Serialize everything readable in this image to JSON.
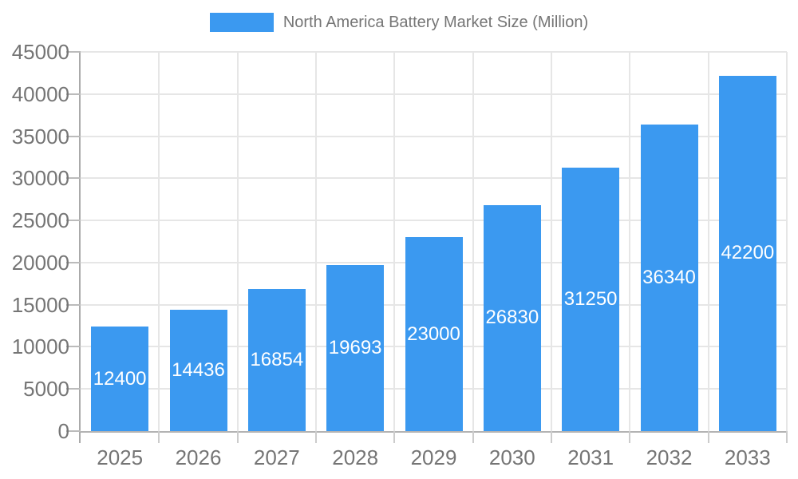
{
  "chart_data": {
    "type": "bar",
    "title": "North America Battery Market Size (Million)",
    "categories": [
      "2025",
      "2026",
      "2027",
      "2028",
      "2029",
      "2030",
      "2031",
      "2032",
      "2033"
    ],
    "values": [
      12400,
      14436,
      16854,
      19693,
      23000,
      26830,
      31250,
      36340,
      42200
    ],
    "xlabel": "",
    "ylabel": "",
    "ylim": [
      0,
      45000
    ],
    "ytick_step": 5000,
    "y_tick_labels": [
      "0",
      "5000",
      "10000",
      "15000",
      "20000",
      "25000",
      "30000",
      "35000",
      "40000",
      "45000"
    ],
    "grid": true,
    "legend_position": "top-center",
    "value_labels": "inside-center",
    "colors": {
      "bar": "#3B99F0",
      "value_label": "#FFFFFF",
      "axis_text": "#757575",
      "gridline": "#E6E6E6",
      "axis_line": "#B3B3B3",
      "tick": "#CCCCCC",
      "background": "#FFFFFF"
    }
  }
}
